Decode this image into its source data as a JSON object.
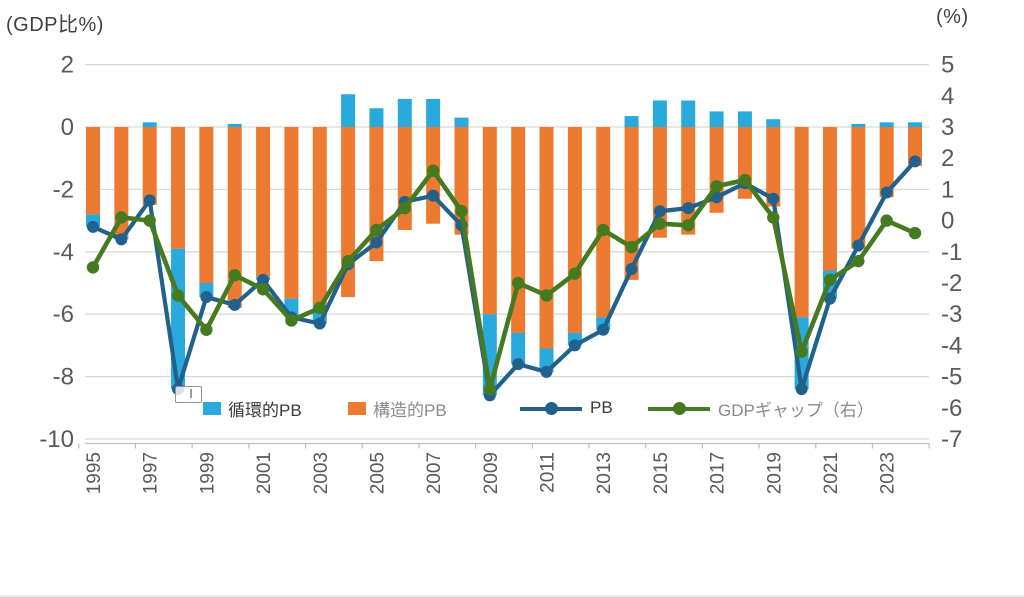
{
  "axis_titles": {
    "left": "(GDP比%)",
    "right": "(%)"
  },
  "left_axis": {
    "ticks": [
      2,
      0,
      -2,
      -4,
      -6,
      -8,
      -10
    ],
    "max": 2,
    "min": -10
  },
  "right_axis": {
    "ticks": [
      5,
      4,
      3,
      2,
      1,
      0,
      -1,
      -2,
      -3,
      -4,
      -5,
      -6,
      -7
    ],
    "max": 5,
    "min": -7
  },
  "legend": {
    "items": [
      {
        "label": "循環的PB",
        "swatch": "square",
        "color": "#29A9DC",
        "text_tone": "dark"
      },
      {
        "label": "構造的PB",
        "swatch": "square",
        "color": "#EC7A30",
        "text_tone": "gray"
      },
      {
        "label": "PB",
        "swatch": "line-dot",
        "color": "#21618C",
        "text_tone": "dark"
      },
      {
        "label": "GDPギャップ（右）",
        "swatch": "line-dot",
        "color": "#457A21",
        "text_tone": "gray"
      }
    ]
  },
  "chart_data": {
    "type": "combo-stacked-bar-and-line",
    "categories": [
      1995,
      1996,
      1997,
      1998,
      1999,
      2000,
      2001,
      2002,
      2003,
      2004,
      2005,
      2006,
      2007,
      2008,
      2009,
      2010,
      2011,
      2012,
      2013,
      2014,
      2015,
      2016,
      2017,
      2018,
      2019,
      2020,
      2021,
      2022,
      2023,
      2024
    ],
    "x_tick_labels": [
      "1995",
      "1997",
      "1999",
      "2001",
      "2003",
      "2005",
      "2007",
      "2009",
      "2011",
      "2013",
      "2015",
      "2017",
      "2019",
      "2021",
      "2023"
    ],
    "series": [
      {
        "name": "循環的PB",
        "type": "bar-stacked",
        "axis": "left",
        "color": "#29A9DC",
        "values": [
          -0.4,
          -0.1,
          0.15,
          -4.5,
          -0.45,
          0.1,
          -0.1,
          -0.6,
          -0.6,
          1.05,
          0.6,
          0.9,
          0.9,
          0.3,
          -2.6,
          -1.0,
          -0.75,
          -0.4,
          -0.4,
          0.35,
          0.85,
          0.85,
          0.5,
          0.5,
          0.25,
          -2.3,
          -0.9,
          0.1,
          0.15,
          0.15
        ]
      },
      {
        "name": "構造的PB",
        "type": "bar-stacked",
        "axis": "left",
        "color": "#EC7A30",
        "values": [
          -2.8,
          -3.5,
          -2.5,
          -3.9,
          -5.0,
          -5.8,
          -4.8,
          -5.5,
          -5.7,
          -5.45,
          -4.3,
          -3.3,
          -3.1,
          -3.45,
          -6.0,
          -6.6,
          -7.1,
          -6.6,
          -6.1,
          -4.9,
          -3.55,
          -3.45,
          -2.75,
          -2.3,
          -2.55,
          -6.1,
          -4.6,
          -3.9,
          -2.25,
          -1.25
        ]
      },
      {
        "name": "PB",
        "type": "line",
        "axis": "left",
        "color": "#21618C",
        "values": [
          -3.2,
          -3.6,
          -2.35,
          -8.4,
          -5.45,
          -5.7,
          -4.9,
          -6.1,
          -6.3,
          -4.4,
          -3.7,
          -2.4,
          -2.2,
          -3.15,
          -8.6,
          -7.6,
          -7.85,
          -7.0,
          -6.5,
          -4.55,
          -2.7,
          -2.6,
          -2.25,
          -1.8,
          -2.3,
          -8.4,
          -5.5,
          -3.8,
          -2.1,
          -1.1
        ]
      },
      {
        "name": "GDPギャップ（右）",
        "type": "line",
        "axis": "right",
        "color": "#457A21",
        "values": [
          -1.5,
          0.1,
          0.0,
          -2.4,
          -3.5,
          -1.75,
          -2.2,
          -3.2,
          -2.8,
          -1.3,
          -0.3,
          0.4,
          1.6,
          0.3,
          -5.4,
          -2.0,
          -2.4,
          -1.7,
          -0.3,
          -0.85,
          -0.1,
          -0.15,
          1.1,
          1.3,
          0.1,
          -4.2,
          -1.9,
          -1.3,
          0.0,
          -0.4
        ]
      }
    ],
    "axis_note": "right axis value = left axis value + 3 (identical pixel scale)",
    "grid": true,
    "legend_position": "bottom-inside"
  },
  "colors": {
    "grid": "#D9D9D9",
    "axis_line": "#BFBFBF",
    "tick_text": "#595959",
    "cyclical": "#29A9DC",
    "structural": "#EC7A30",
    "pb_line": "#21618C",
    "gap_line": "#457A21"
  }
}
